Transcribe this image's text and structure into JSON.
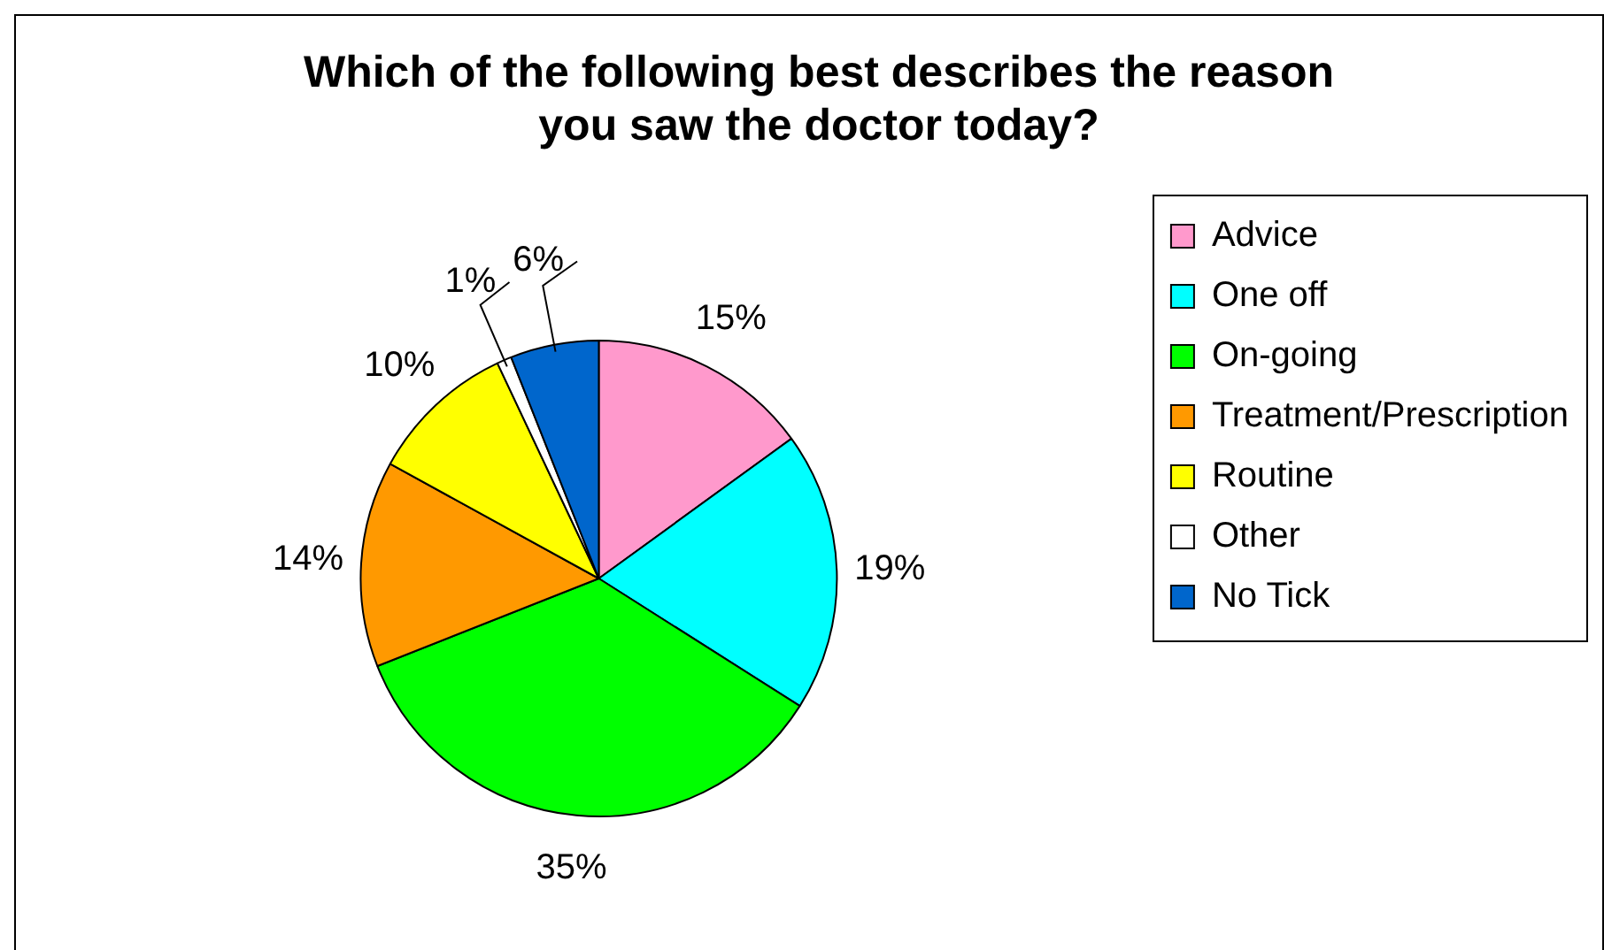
{
  "chart_data": {
    "type": "pie",
    "title": [
      "Which of the following best describes the reason",
      "you saw the doctor today?"
    ],
    "categories": [
      "Advice",
      "One off",
      "On-going",
      "Treatment/Prescription",
      "Routine",
      "Other",
      "No Tick"
    ],
    "values": [
      15,
      19,
      35,
      14,
      10,
      1,
      6
    ],
    "colors": [
      "#ff99cc",
      "#00ffff",
      "#00ff00",
      "#ff9900",
      "#ffff00",
      "#ffffff",
      "#0066cc"
    ],
    "value_labels": [
      "15%",
      "19%",
      "35%",
      "14%",
      "10%",
      "1%",
      "6%"
    ],
    "legend": "right"
  }
}
